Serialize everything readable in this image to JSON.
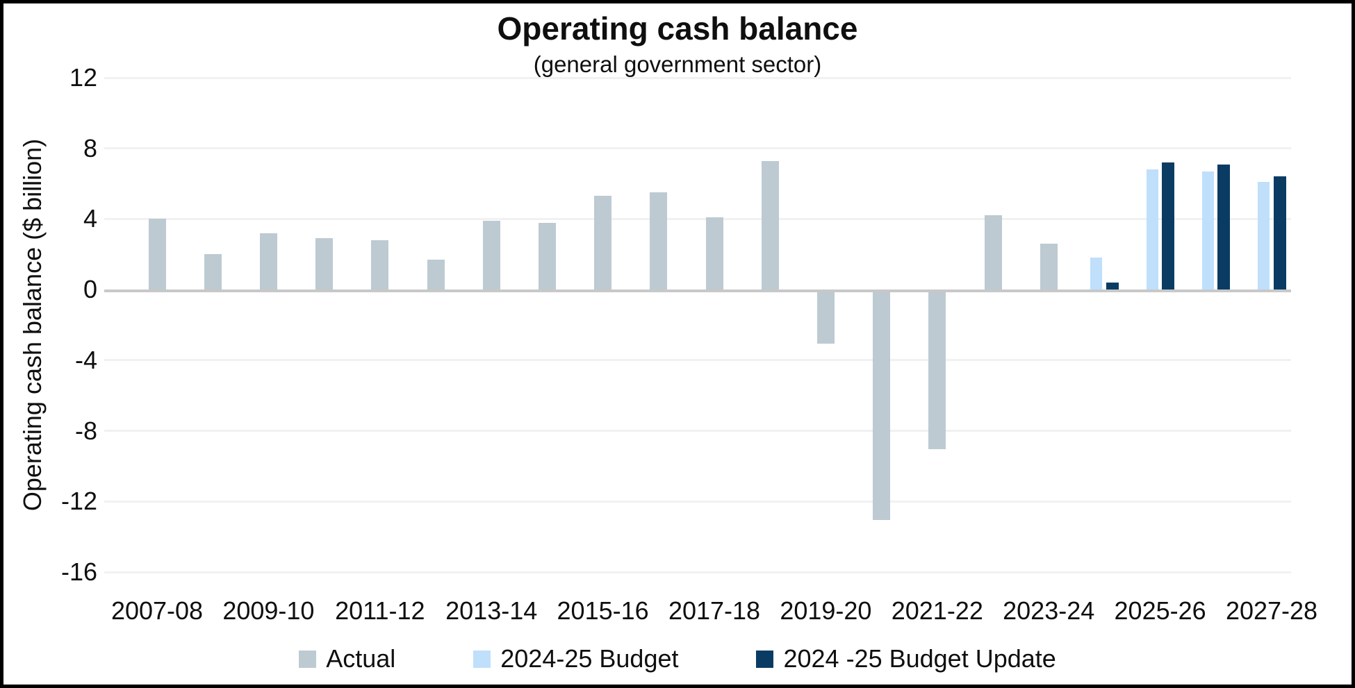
{
  "title": "Operating cash balance",
  "subtitle": "(general government sector)",
  "y_axis": {
    "title": "Operating cash balance ($ billion)",
    "ticks": [
      12,
      8,
      4,
      0,
      -4,
      -8,
      -12,
      -16
    ]
  },
  "x_axis": {
    "labels": [
      "2007-08",
      "2009-10",
      "2011-12",
      "2013-14",
      "2015-16",
      "2017-18",
      "2019-20",
      "2021-22",
      "2023-24",
      "2025-26",
      "2027-28"
    ]
  },
  "chart_data": {
    "type": "bar",
    "title": "Operating cash balance",
    "subtitle": "(general government sector)",
    "xlabel": "",
    "ylabel": "Operating cash balance ($ billion)",
    "ylim": [
      -16,
      12
    ],
    "ytick_interval": 4,
    "grid": true,
    "legend_position": "bottom",
    "categories": [
      "2007-08",
      "2008-09",
      "2009-10",
      "2010-11",
      "2011-12",
      "2012-13",
      "2013-14",
      "2014-15",
      "2015-16",
      "2016-17",
      "2017-18",
      "2018-19",
      "2019-20",
      "2020-21",
      "2021-22",
      "2022-23",
      "2023-24",
      "2024-25",
      "2025-26",
      "2026-27",
      "2027-28"
    ],
    "series": [
      {
        "name": "Actual",
        "color": "#BDCAD2",
        "values": [
          4.0,
          2.0,
          3.2,
          2.9,
          2.8,
          1.7,
          3.9,
          3.8,
          5.3,
          5.5,
          4.1,
          7.3,
          -2.9,
          -12.9,
          -8.9,
          4.2,
          2.6,
          null,
          null,
          null,
          null
        ]
      },
      {
        "name": "2024-25 Budget",
        "color": "#BFDFFB",
        "values": [
          null,
          null,
          null,
          null,
          null,
          null,
          null,
          null,
          null,
          null,
          null,
          null,
          null,
          null,
          null,
          null,
          null,
          1.8,
          6.8,
          6.7,
          6.1
        ]
      },
      {
        "name": "2024 -25 Budget Update",
        "color": "#0A3C63",
        "values": [
          null,
          null,
          null,
          null,
          null,
          null,
          null,
          null,
          null,
          null,
          null,
          null,
          null,
          null,
          null,
          null,
          null,
          0.4,
          7.2,
          7.1,
          6.4
        ]
      }
    ]
  }
}
